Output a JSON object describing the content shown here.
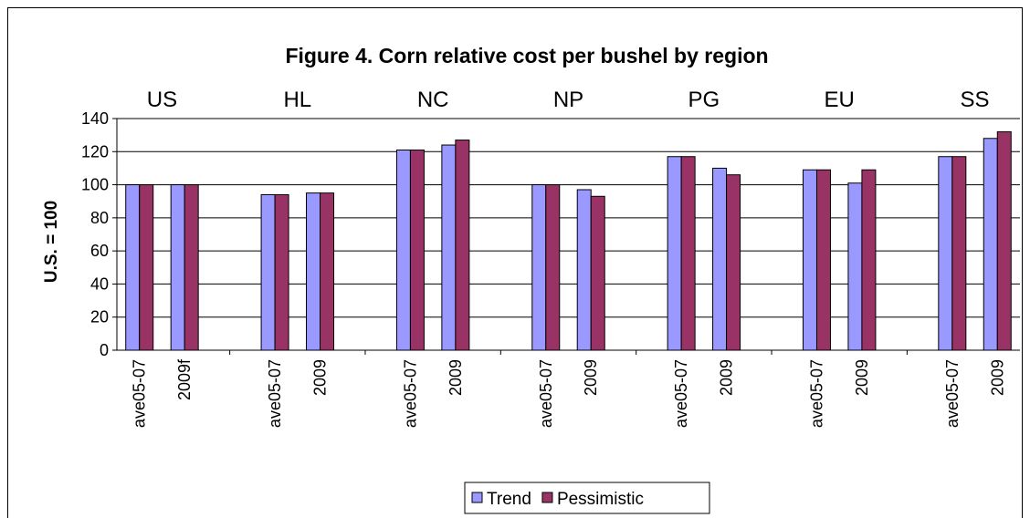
{
  "chart_data": {
    "type": "bar",
    "title": "Figure 4. Corn relative cost per bushel by region",
    "ylabel": "U.S. = 100",
    "xlabel": "",
    "ylim": [
      0,
      140
    ],
    "yticks": [
      0,
      20,
      40,
      60,
      80,
      100,
      120,
      140
    ],
    "grid": true,
    "legend_position": "bottom-center",
    "groups": [
      {
        "region": "US",
        "categories": [
          "ave05-07",
          "2009f"
        ]
      },
      {
        "region": "HL",
        "categories": [
          "ave05-07",
          "2009"
        ]
      },
      {
        "region": "NC",
        "categories": [
          "ave05-07",
          "2009"
        ]
      },
      {
        "region": "NP",
        "categories": [
          "ave05-07",
          "2009"
        ]
      },
      {
        "region": "PG",
        "categories": [
          "ave05-07",
          "2009"
        ]
      },
      {
        "region": "EU",
        "categories": [
          "ave05-07",
          "2009"
        ]
      },
      {
        "region": "SS",
        "categories": [
          "ave05-07",
          "2009"
        ]
      }
    ],
    "series": [
      {
        "name": "Trend",
        "color": "#9999FF",
        "values": [
          100,
          100,
          94,
          95,
          121,
          124,
          100,
          97,
          117,
          110,
          109,
          101,
          117,
          128
        ]
      },
      {
        "name": "Pessimistic",
        "color": "#993366",
        "values": [
          100,
          100,
          94,
          95,
          121,
          127,
          100,
          93,
          117,
          106,
          109,
          109,
          117,
          132
        ]
      }
    ]
  }
}
